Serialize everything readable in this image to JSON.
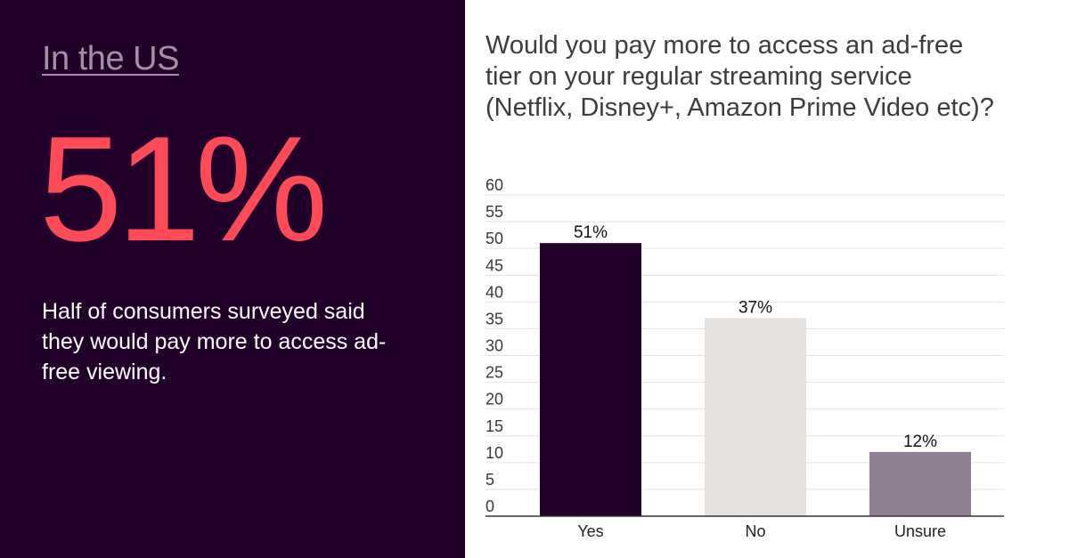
{
  "left": {
    "heading": "In the US",
    "big_stat": "51%",
    "summary": "Half of consumers surveyed said they would pay more to access ad-free viewing."
  },
  "chart_data": {
    "type": "bar",
    "title": "Would you pay more to access an ad-free tier on your regular streaming service (Netflix, Disney+, Amazon Prime Video etc)?",
    "categories": [
      "Yes",
      "No",
      "Unsure"
    ],
    "values": [
      51,
      37,
      12
    ],
    "data_labels": [
      "51%",
      "37%",
      "12%"
    ],
    "bar_colors": [
      "#21002a",
      "#e6e2df",
      "#8f7f93"
    ],
    "ylim": [
      0,
      60
    ],
    "yticks": [
      0,
      5,
      10,
      15,
      20,
      25,
      30,
      35,
      40,
      45,
      50,
      55,
      60
    ],
    "grid": true,
    "xlabel": "",
    "ylabel": ""
  },
  "colors": {
    "left_background": "#21002a",
    "accent": "#ff4a57",
    "heading": "#a58fa6",
    "gridline": "#e2e2e2",
    "axis": "#333333"
  }
}
